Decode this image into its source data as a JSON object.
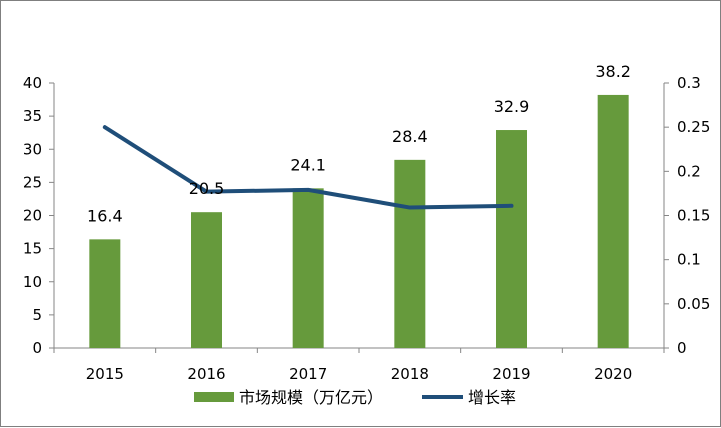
{
  "chart_data": {
    "type": "bar",
    "categories": [
      "2015",
      "2016",
      "2017",
      "2018",
      "2019",
      "2020"
    ],
    "series": [
      {
        "name": "市场规模（万亿元）",
        "type": "bar",
        "axis": "left",
        "color": "#669a3c",
        "values": [
          16.4,
          20.5,
          24.1,
          28.4,
          32.9,
          38.2
        ],
        "data_labels": [
          "16.4",
          "20.5",
          "24.1",
          "28.4",
          "32.9",
          "38.2"
        ]
      },
      {
        "name": "增长率",
        "type": "line",
        "axis": "right",
        "color": "#1f4e79",
        "values": [
          0.25,
          0.177,
          0.179,
          0.159,
          0.161,
          null
        ]
      }
    ],
    "y_left": {
      "ylim": [
        0,
        40
      ],
      "ticks": [
        "0",
        "5",
        "10",
        "15",
        "20",
        "25",
        "30",
        "35",
        "40"
      ]
    },
    "y_right": {
      "ylim": [
        0,
        0.3
      ],
      "ticks": [
        "0",
        "0.05",
        "0.1",
        "0.15",
        "0.2",
        "0.25",
        "0.3"
      ]
    },
    "grid": false,
    "legend_position": "bottom"
  }
}
